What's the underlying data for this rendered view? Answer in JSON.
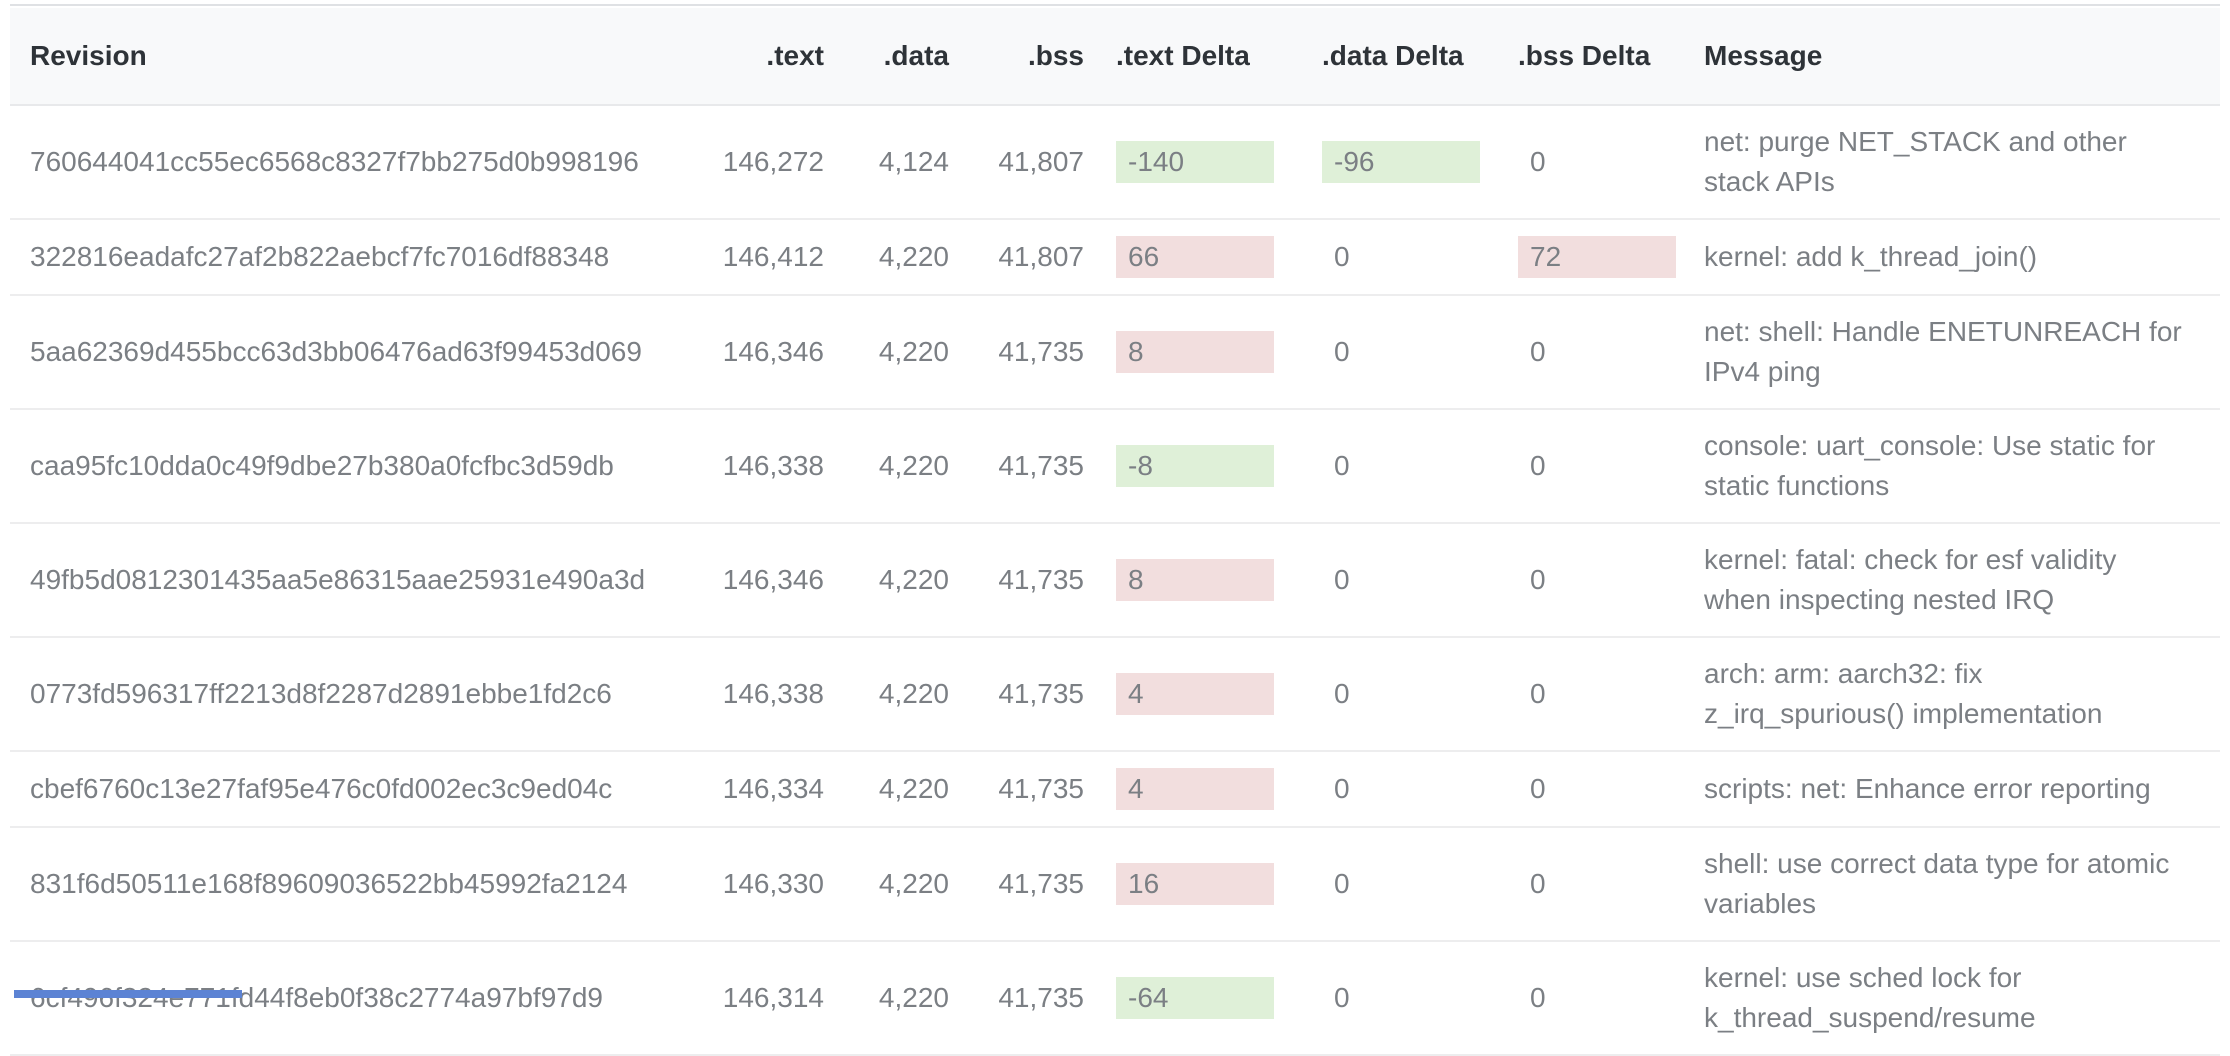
{
  "table": {
    "columns": [
      {
        "key": "revision",
        "label": "Revision"
      },
      {
        "key": "text",
        "label": ".text"
      },
      {
        "key": "data",
        "label": ".data"
      },
      {
        "key": "bss",
        "label": ".bss"
      },
      {
        "key": "text_delta",
        "label": ".text Delta"
      },
      {
        "key": "data_delta",
        "label": ".data Delta"
      },
      {
        "key": "bss_delta",
        "label": ".bss Delta"
      },
      {
        "key": "message",
        "label": "Message"
      }
    ],
    "rows": [
      {
        "revision": "760644041cc55ec6568c8327f7bb275d0b998196",
        "text": "146,272",
        "data": "4,124",
        "bss": "41,807",
        "text_delta": "-140",
        "data_delta": "-96",
        "bss_delta": "0",
        "message": "net: purge NET_STACK and other stack APIs"
      },
      {
        "revision": "322816eadafc27af2b822aebcf7fc7016df88348",
        "text": "146,412",
        "data": "4,220",
        "bss": "41,807",
        "text_delta": "66",
        "data_delta": "0",
        "bss_delta": "72",
        "message": "kernel: add k_thread_join()"
      },
      {
        "revision": "5aa62369d455bcc63d3bb06476ad63f99453d069",
        "text": "146,346",
        "data": "4,220",
        "bss": "41,735",
        "text_delta": "8",
        "data_delta": "0",
        "bss_delta": "0",
        "message": "net: shell: Handle ENETUNREACH for IPv4 ping"
      },
      {
        "revision": "caa95fc10dda0c49f9dbe27b380a0fcfbc3d59db",
        "text": "146,338",
        "data": "4,220",
        "bss": "41,735",
        "text_delta": "-8",
        "data_delta": "0",
        "bss_delta": "0",
        "message": "console: uart_console: Use static for static functions"
      },
      {
        "revision": "49fb5d0812301435aa5e86315aae25931e490a3d",
        "text": "146,346",
        "data": "4,220",
        "bss": "41,735",
        "text_delta": "8",
        "data_delta": "0",
        "bss_delta": "0",
        "message": "kernel: fatal: check for esf validity when inspecting nested IRQ"
      },
      {
        "revision": "0773fd596317ff2213d8f2287d2891ebbe1fd2c6",
        "text": "146,338",
        "data": "4,220",
        "bss": "41,735",
        "text_delta": "4",
        "data_delta": "0",
        "bss_delta": "0",
        "message": "arch: arm: aarch32: fix z_irq_spurious() implementation"
      },
      {
        "revision": "cbef6760c13e27faf95e476c0fd002ec3c9ed04c",
        "text": "146,334",
        "data": "4,220",
        "bss": "41,735",
        "text_delta": "4",
        "data_delta": "0",
        "bss_delta": "0",
        "message": "scripts: net: Enhance error reporting"
      },
      {
        "revision": "831f6d50511e168f89609036522bb45992fa2124",
        "text": "146,330",
        "data": "4,220",
        "bss": "41,735",
        "text_delta": "16",
        "data_delta": "0",
        "bss_delta": "0",
        "message": "shell: use correct data type for atomic variables"
      },
      {
        "revision": "6cf496f324e771fd44f8eb0f38c2774a97bf97d9",
        "text": "146,314",
        "data": "4,220",
        "bss": "41,735",
        "text_delta": "-64",
        "data_delta": "0",
        "bss_delta": "0",
        "message": "kernel: use sched lock for k_thread_suspend/resume"
      }
    ]
  },
  "colors": {
    "header_bg": "#f8f9fa",
    "delta_increase_bg": "#f2dede",
    "delta_decrease_bg": "#dff0d8",
    "body_text": "#7b7f84",
    "header_text": "#2e3338",
    "accent_blue": "#5c83d4"
  }
}
